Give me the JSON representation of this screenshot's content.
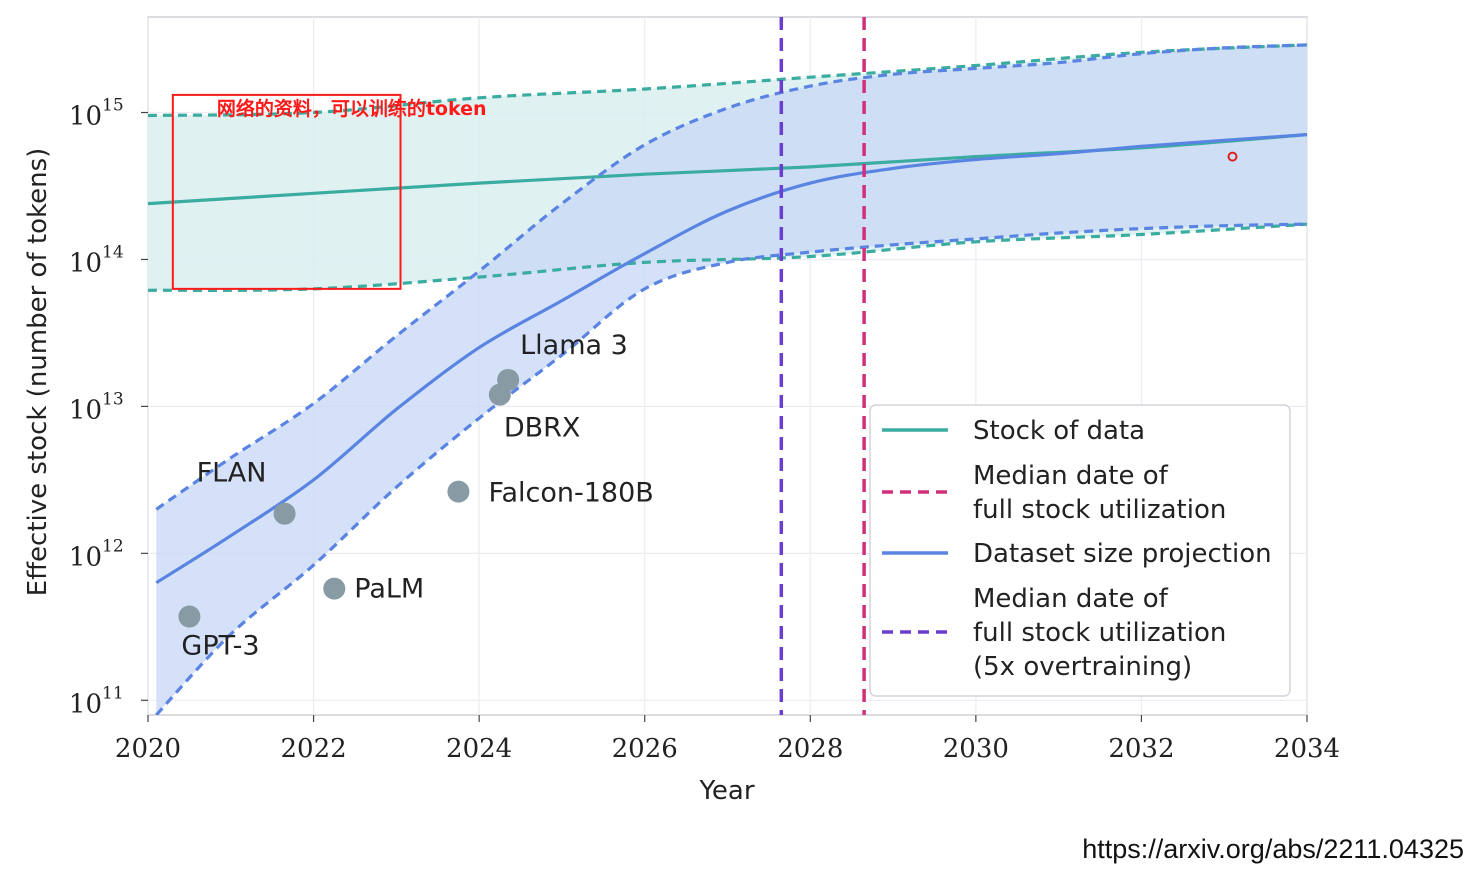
{
  "chart_data": {
    "type": "line",
    "xlabel": "Year",
    "ylabel": "Effective stock (number of tokens)",
    "xlim": [
      2020,
      2034
    ],
    "ylim_log10": [
      10.9,
      15.65
    ],
    "x_ticks": [
      2020,
      2022,
      2024,
      2026,
      2028,
      2030,
      2032,
      2034
    ],
    "y_ticks": [
      {
        "exp": 11,
        "base": "10",
        "sup": "11"
      },
      {
        "exp": 12,
        "base": "10",
        "sup": "12"
      },
      {
        "exp": 13,
        "base": "10",
        "sup": "13"
      },
      {
        "exp": 14,
        "base": "10",
        "sup": "14"
      },
      {
        "exp": 15,
        "base": "10",
        "sup": "15"
      }
    ],
    "series": [
      {
        "name": "Stock of data",
        "color": "#3aaca0",
        "x": [
          2020,
          2022,
          2024,
          2026,
          2028,
          2030,
          2032,
          2034
        ],
        "median_log10": [
          14.38,
          14.45,
          14.52,
          14.58,
          14.63,
          14.7,
          14.76,
          14.85
        ],
        "upper_log10": [
          14.98,
          15.0,
          15.1,
          15.16,
          15.24,
          15.32,
          15.41,
          15.46
        ],
        "lower_log10": [
          13.79,
          13.8,
          13.88,
          13.98,
          14.02,
          14.12,
          14.17,
          14.24
        ]
      },
      {
        "name": "Dataset size projection",
        "color": "#5a84e2",
        "x": [
          2020.1,
          2021,
          2022,
          2023,
          2024,
          2025,
          2026,
          2027,
          2028,
          2029,
          2030,
          2031,
          2032,
          2033,
          2034
        ],
        "median_log10": [
          11.8,
          12.12,
          12.5,
          12.98,
          13.4,
          13.72,
          14.04,
          14.33,
          14.52,
          14.62,
          14.68,
          14.72,
          14.77,
          14.81,
          14.85
        ],
        "upper_log10": [
          12.3,
          12.65,
          13.02,
          13.48,
          13.92,
          14.38,
          14.78,
          15.03,
          15.18,
          15.26,
          15.3,
          15.34,
          15.4,
          15.44,
          15.46
        ],
        "lower_log10": [
          10.9,
          11.45,
          11.92,
          12.45,
          12.92,
          13.35,
          13.8,
          13.98,
          14.05,
          14.1,
          14.14,
          14.18,
          14.21,
          14.23,
          14.24
        ]
      }
    ],
    "vlines": [
      {
        "name": "Median date of full stock utilization (5x overtraining)",
        "x": 2027.65,
        "color": "#6a3fd0"
      },
      {
        "name": "Median date of full stock utilization",
        "x": 2028.65,
        "color": "#d0307a"
      }
    ],
    "points": [
      {
        "label": "GPT-3",
        "x": 2020.5,
        "y_log10": 11.57
      },
      {
        "label": "FLAN",
        "x": 2021.65,
        "y_log10": 12.27
      },
      {
        "label": "PaLM",
        "x": 2022.25,
        "y_log10": 11.76
      },
      {
        "label": "Falcon-180B",
        "x": 2023.75,
        "y_log10": 12.42
      },
      {
        "label": "DBRX",
        "x": 2024.25,
        "y_log10": 13.08
      },
      {
        "label": "Llama 3",
        "x": 2024.35,
        "y_log10": 13.18
      }
    ],
    "legend": {
      "placement": "lower-right",
      "entries": [
        {
          "lines": [
            "Stock of data"
          ],
          "color": "#3aaca0",
          "style": "solid"
        },
        {
          "lines": [
            "Median date of",
            "full stock utilization"
          ],
          "color": "#d0307a",
          "style": "dashed"
        },
        {
          "lines": [
            "Dataset size projection"
          ],
          "color": "#5a84e2",
          "style": "solid"
        },
        {
          "lines": [
            "Median date of",
            "full stock utilization",
            "(5x overtraining)"
          ],
          "color": "#6a3fd0",
          "style": "dashed"
        }
      ]
    }
  },
  "annotation": {
    "text": "网络的资料，可以训练的token",
    "color": "#ff1a1a",
    "box_x": [
      2020.3,
      2023.05
    ],
    "box_y_log10": [
      13.8,
      15.12
    ]
  },
  "source_url": "https://arxiv.org/abs/2211.04325"
}
